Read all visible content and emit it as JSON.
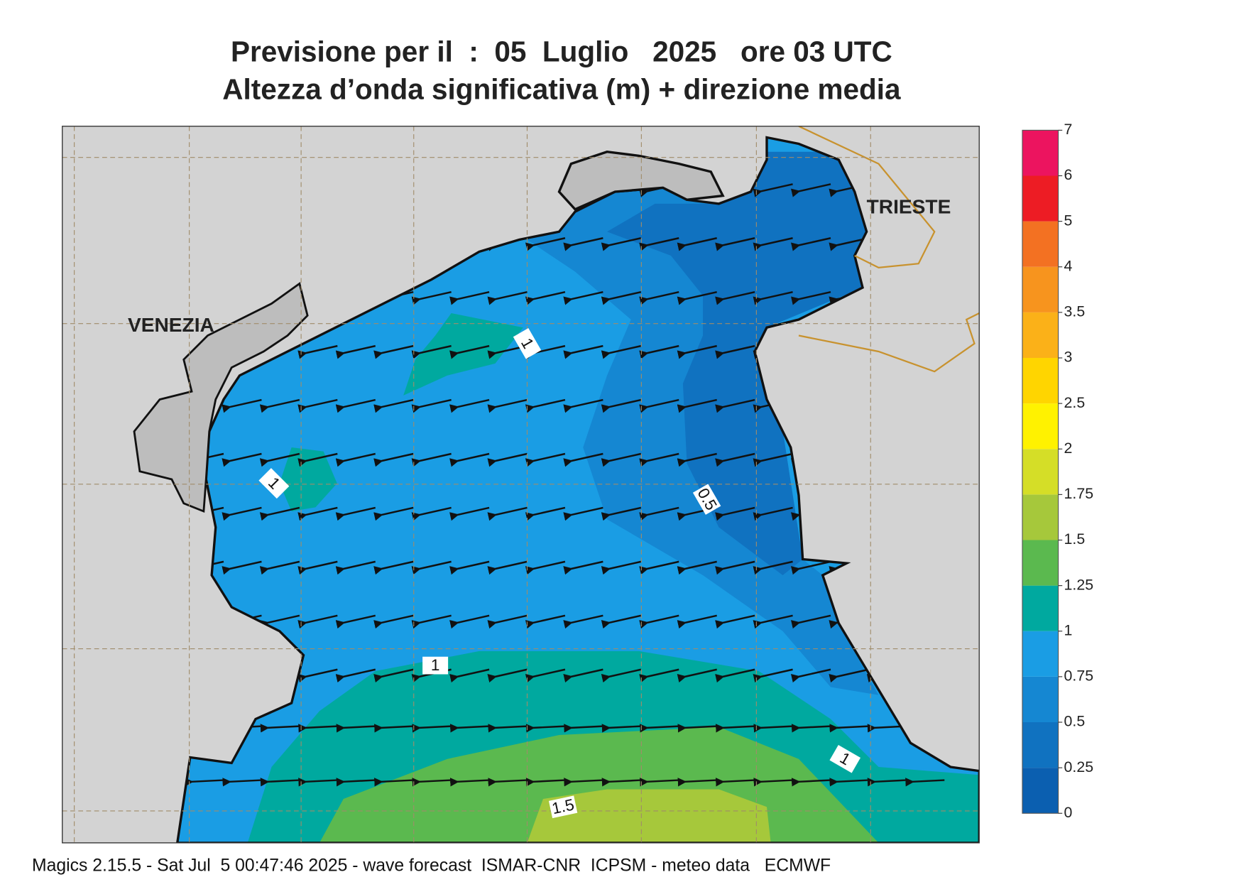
{
  "header": {
    "title": "Previsione per il  :  05  Luglio   2025   ore 03 UTC",
    "subtitle": "Altezza d’onda significativa (m) + direzione media"
  },
  "map": {
    "places": [
      "VENEZIA",
      "TRIESTE"
    ],
    "contour_labels": [
      1,
      1,
      0.5,
      1,
      1,
      1.5
    ]
  },
  "colorbar": {
    "levels": [
      0,
      0.25,
      0.5,
      0.75,
      1,
      1.25,
      1.5,
      1.75,
      2,
      2.5,
      3,
      3.5,
      4,
      5,
      6,
      7
    ],
    "colors": [
      "#0b5fb0",
      "#1072c0",
      "#1587d2",
      "#1a9de4",
      "#00a99f",
      "#5bb94f",
      "#a6c83b",
      "#d5de27",
      "#fff200",
      "#ffd500",
      "#fbb118",
      "#f7941e",
      "#f37122",
      "#ed1c24",
      "#ec145f"
    ]
  },
  "footer": "Magics 2.15.5 - Sat Jul  5 00:47:46 2025 - wave forecast  ISMAR-CNR  ICPSM - meteo data   ECMWF"
}
